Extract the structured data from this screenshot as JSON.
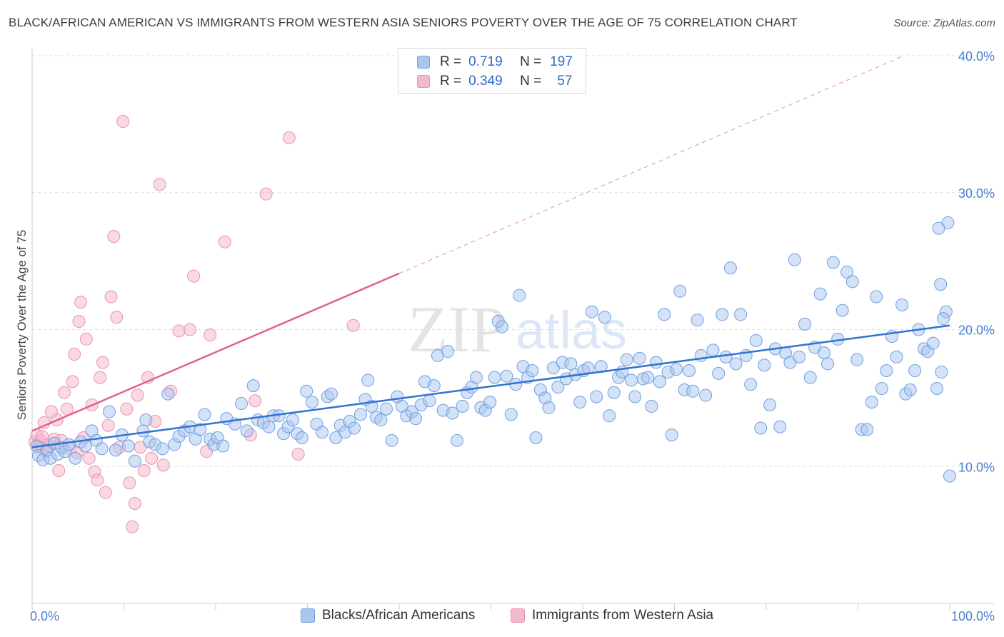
{
  "title": "BLACK/AFRICAN AMERICAN VS IMMIGRANTS FROM WESTERN ASIA SENIORS POVERTY OVER THE AGE OF 75 CORRELATION CHART",
  "source": "Source: ZipAtlas.com",
  "watermark": {
    "zip": "ZIP",
    "atlas": "atlas"
  },
  "legend": {
    "rows": [
      {
        "r_label": "R =",
        "r_value": "0.719",
        "n_label": "N =",
        "n_value": "197"
      },
      {
        "r_label": "R =",
        "r_value": "0.349",
        "n_label": "N =",
        "n_value": "57"
      }
    ]
  },
  "colors": {
    "blue_fill": "#a9c6ef",
    "blue_stroke": "#6f9fdf",
    "blue_line": "#2f72d1",
    "pink_fill": "#f5b9cc",
    "pink_stroke": "#e993ad",
    "pink_line": "#e0608f",
    "grid": "#dddddd",
    "tick_text": "#4a7fd4"
  },
  "chart_data": {
    "type": "scatter",
    "title": "BLACK/AFRICAN AMERICAN VS IMMIGRANTS FROM WESTERN ASIA SENIORS POVERTY OVER THE AGE OF 75 CORRELATION CHART",
    "xlabel": "",
    "ylabel": "Seniors Poverty Over the Age of 75",
    "xlim": [
      0,
      100
    ],
    "ylim": [
      0,
      40
    ],
    "x_tick_labels": [
      "0.0%",
      "100.0%"
    ],
    "y_ticks": [
      10,
      20,
      30,
      40
    ],
    "y_tick_labels": [
      "10.0%",
      "20.0%",
      "30.0%",
      "40.0%"
    ],
    "grid": true,
    "legend_position": "top-center",
    "series": [
      {
        "name": "Blacks/African Americans",
        "color": "#a9c6ef",
        "R": 0.719,
        "N": 197,
        "trend": {
          "x": [
            0,
            100
          ],
          "y": [
            11.4,
            20.3
          ],
          "style": "solid"
        },
        "points": [
          [
            0.5,
            11.5
          ],
          [
            0.7,
            10.8
          ],
          [
            1.2,
            10.5
          ],
          [
            1.6,
            11.2
          ],
          [
            2.0,
            10.6
          ],
          [
            2.4,
            11.7
          ],
          [
            2.8,
            10.9
          ],
          [
            3.2,
            11.4
          ],
          [
            3.6,
            11.1
          ],
          [
            4.0,
            11.6
          ],
          [
            4.7,
            10.6
          ],
          [
            5.3,
            11.8
          ],
          [
            5.8,
            11.5
          ],
          [
            6.5,
            12.6
          ],
          [
            7.0,
            11.9
          ],
          [
            7.6,
            11.3
          ],
          [
            8.4,
            14.0
          ],
          [
            9.1,
            11.2
          ],
          [
            9.8,
            12.3
          ],
          [
            10.5,
            11.5
          ],
          [
            11.2,
            10.4
          ],
          [
            12.1,
            12.6
          ],
          [
            12.4,
            13.4
          ],
          [
            12.8,
            11.8
          ],
          [
            13.4,
            11.6
          ],
          [
            14.2,
            11.3
          ],
          [
            14.8,
            15.3
          ],
          [
            15.5,
            11.6
          ],
          [
            16.0,
            12.2
          ],
          [
            16.6,
            12.6
          ],
          [
            17.2,
            12.9
          ],
          [
            17.8,
            12.0
          ],
          [
            18.3,
            12.7
          ],
          [
            18.8,
            13.8
          ],
          [
            19.4,
            12.0
          ],
          [
            19.8,
            11.6
          ],
          [
            20.2,
            12.1
          ],
          [
            20.8,
            11.5
          ],
          [
            21.2,
            13.5
          ],
          [
            22.1,
            13.1
          ],
          [
            22.8,
            14.6
          ],
          [
            23.4,
            12.6
          ],
          [
            24.1,
            15.9
          ],
          [
            24.6,
            13.4
          ],
          [
            25.2,
            13.2
          ],
          [
            25.8,
            12.9
          ],
          [
            26.3,
            13.7
          ],
          [
            26.9,
            13.7
          ],
          [
            27.4,
            12.4
          ],
          [
            27.9,
            12.9
          ],
          [
            28.4,
            13.4
          ],
          [
            28.9,
            12.4
          ],
          [
            29.4,
            12.1
          ],
          [
            29.9,
            15.5
          ],
          [
            30.5,
            14.7
          ],
          [
            31.0,
            13.1
          ],
          [
            31.6,
            12.5
          ],
          [
            32.2,
            15.1
          ],
          [
            32.6,
            15.3
          ],
          [
            33.1,
            12.1
          ],
          [
            33.6,
            13.0
          ],
          [
            34.1,
            12.5
          ],
          [
            34.6,
            13.3
          ],
          [
            35.1,
            12.8
          ],
          [
            35.8,
            13.8
          ],
          [
            36.3,
            14.9
          ],
          [
            36.6,
            16.3
          ],
          [
            37.0,
            14.4
          ],
          [
            37.5,
            13.6
          ],
          [
            38.0,
            13.4
          ],
          [
            38.6,
            14.2
          ],
          [
            39.2,
            11.9
          ],
          [
            39.8,
            15.1
          ],
          [
            40.3,
            14.4
          ],
          [
            40.8,
            13.7
          ],
          [
            41.4,
            14.0
          ],
          [
            41.8,
            13.5
          ],
          [
            42.4,
            14.5
          ],
          [
            42.8,
            16.2
          ],
          [
            43.3,
            14.8
          ],
          [
            43.8,
            15.9
          ],
          [
            44.2,
            18.1
          ],
          [
            44.8,
            14.1
          ],
          [
            45.3,
            18.4
          ],
          [
            45.8,
            13.9
          ],
          [
            46.3,
            11.9
          ],
          [
            46.9,
            14.4
          ],
          [
            47.4,
            15.4
          ],
          [
            47.9,
            15.8
          ],
          [
            48.4,
            16.5
          ],
          [
            48.9,
            14.3
          ],
          [
            49.4,
            14.1
          ],
          [
            49.9,
            14.7
          ],
          [
            50.4,
            16.5
          ],
          [
            50.8,
            20.6
          ],
          [
            51.2,
            20.2
          ],
          [
            51.7,
            16.6
          ],
          [
            52.2,
            13.8
          ],
          [
            52.7,
            16.0
          ],
          [
            53.1,
            22.5
          ],
          [
            53.5,
            17.3
          ],
          [
            54.0,
            16.5
          ],
          [
            54.5,
            17.0
          ],
          [
            54.9,
            12.1
          ],
          [
            55.4,
            15.6
          ],
          [
            55.9,
            15.0
          ],
          [
            56.3,
            14.3
          ],
          [
            56.8,
            17.2
          ],
          [
            57.3,
            15.8
          ],
          [
            57.8,
            17.6
          ],
          [
            58.2,
            16.4
          ],
          [
            58.7,
            17.5
          ],
          [
            59.2,
            16.7
          ],
          [
            59.7,
            14.7
          ],
          [
            60.1,
            17.0
          ],
          [
            60.6,
            17.2
          ],
          [
            61.0,
            21.3
          ],
          [
            61.5,
            15.1
          ],
          [
            62.0,
            17.3
          ],
          [
            62.4,
            20.9
          ],
          [
            62.9,
            13.7
          ],
          [
            63.4,
            15.4
          ],
          [
            63.9,
            16.5
          ],
          [
            64.3,
            16.9
          ],
          [
            64.8,
            17.8
          ],
          [
            65.3,
            16.3
          ],
          [
            65.7,
            15.1
          ],
          [
            66.2,
            17.9
          ],
          [
            66.6,
            16.4
          ],
          [
            67.1,
            16.5
          ],
          [
            67.5,
            14.4
          ],
          [
            68.0,
            17.6
          ],
          [
            68.4,
            16.2
          ],
          [
            68.9,
            21.1
          ],
          [
            69.3,
            16.9
          ],
          [
            69.7,
            12.3
          ],
          [
            70.2,
            17.1
          ],
          [
            70.6,
            22.8
          ],
          [
            71.1,
            15.6
          ],
          [
            71.6,
            17.0
          ],
          [
            72.0,
            15.5
          ],
          [
            72.5,
            20.7
          ],
          [
            72.9,
            18.1
          ],
          [
            73.4,
            15.2
          ],
          [
            74.2,
            18.5
          ],
          [
            74.8,
            16.8
          ],
          [
            75.2,
            21.1
          ],
          [
            75.6,
            18.0
          ],
          [
            76.1,
            24.5
          ],
          [
            76.7,
            17.5
          ],
          [
            77.2,
            21.1
          ],
          [
            77.8,
            18.1
          ],
          [
            78.3,
            16.0
          ],
          [
            78.9,
            19.2
          ],
          [
            79.4,
            12.8
          ],
          [
            79.8,
            17.4
          ],
          [
            80.4,
            14.5
          ],
          [
            81.0,
            18.6
          ],
          [
            81.5,
            12.9
          ],
          [
            82.1,
            18.3
          ],
          [
            82.6,
            17.6
          ],
          [
            83.1,
            25.1
          ],
          [
            83.6,
            18.0
          ],
          [
            84.2,
            20.4
          ],
          [
            84.8,
            16.5
          ],
          [
            85.3,
            18.7
          ],
          [
            85.9,
            22.6
          ],
          [
            86.3,
            18.3
          ],
          [
            86.7,
            17.5
          ],
          [
            87.3,
            24.9
          ],
          [
            87.8,
            19.3
          ],
          [
            88.3,
            21.4
          ],
          [
            88.8,
            24.2
          ],
          [
            89.4,
            23.5
          ],
          [
            89.9,
            17.8
          ],
          [
            90.4,
            12.7
          ],
          [
            91.0,
            12.7
          ],
          [
            91.5,
            14.7
          ],
          [
            92.0,
            22.4
          ],
          [
            92.6,
            15.7
          ],
          [
            93.1,
            17.0
          ],
          [
            93.7,
            19.5
          ],
          [
            94.2,
            18.0
          ],
          [
            94.8,
            21.8
          ],
          [
            95.2,
            15.3
          ],
          [
            95.7,
            15.6
          ],
          [
            96.2,
            17.0
          ],
          [
            96.6,
            20.0
          ],
          [
            97.2,
            18.6
          ],
          [
            97.6,
            18.4
          ],
          [
            98.2,
            19.0
          ],
          [
            98.6,
            15.7
          ],
          [
            99.1,
            16.9
          ],
          [
            99.6,
            21.3
          ],
          [
            100.0,
            9.3
          ],
          [
            99.8,
            27.8
          ],
          [
            99.3,
            20.8
          ],
          [
            99.0,
            23.3
          ],
          [
            98.8,
            27.4
          ]
        ]
      },
      {
        "name": "Immigrants from Western Asia",
        "color": "#f5b9cc",
        "R": 0.349,
        "N": 57,
        "trend_solid": {
          "x": [
            0,
            40
          ],
          "y": [
            12.6,
            24.1
          ],
          "style": "solid"
        },
        "trend_dashed": {
          "x": [
            40,
            95
          ],
          "y": [
            24.1,
            40.0
          ],
          "style": "dashed"
        },
        "points": [
          [
            0.3,
            11.8
          ],
          [
            0.5,
            12.3
          ],
          [
            0.7,
            11.4
          ],
          [
            0.9,
            11.9
          ],
          [
            1.1,
            12.2
          ],
          [
            1.3,
            13.2
          ],
          [
            1.5,
            11.1
          ],
          [
            1.7,
            11.6
          ],
          [
            1.9,
            11.5
          ],
          [
            2.1,
            14.0
          ],
          [
            2.4,
            12.0
          ],
          [
            2.7,
            13.4
          ],
          [
            2.9,
            9.7
          ],
          [
            3.2,
            11.9
          ],
          [
            3.5,
            15.4
          ],
          [
            3.8,
            14.2
          ],
          [
            4.1,
            11.3
          ],
          [
            4.4,
            16.2
          ],
          [
            4.6,
            18.2
          ],
          [
            4.9,
            11.0
          ],
          [
            5.1,
            20.6
          ],
          [
            5.3,
            22.0
          ],
          [
            5.6,
            12.1
          ],
          [
            5.9,
            19.3
          ],
          [
            6.2,
            10.6
          ],
          [
            6.5,
            14.5
          ],
          [
            6.8,
            9.6
          ],
          [
            7.1,
            9.0
          ],
          [
            7.4,
            16.5
          ],
          [
            7.7,
            17.6
          ],
          [
            8.0,
            8.1
          ],
          [
            8.3,
            13.0
          ],
          [
            8.6,
            22.4
          ],
          [
            8.9,
            26.8
          ],
          [
            9.2,
            20.9
          ],
          [
            9.5,
            11.4
          ],
          [
            9.9,
            35.2
          ],
          [
            10.3,
            14.2
          ],
          [
            10.6,
            8.8
          ],
          [
            10.9,
            5.6
          ],
          [
            11.2,
            7.3
          ],
          [
            11.5,
            15.2
          ],
          [
            11.8,
            11.4
          ],
          [
            12.2,
            9.7
          ],
          [
            12.6,
            16.5
          ],
          [
            13.0,
            10.6
          ],
          [
            13.4,
            13.3
          ],
          [
            13.9,
            30.6
          ],
          [
            14.3,
            10.1
          ],
          [
            15.1,
            15.5
          ],
          [
            16.0,
            19.9
          ],
          [
            17.2,
            20.0
          ],
          [
            17.6,
            23.9
          ],
          [
            19.0,
            11.1
          ],
          [
            19.4,
            19.6
          ],
          [
            21.0,
            26.4
          ],
          [
            23.8,
            12.3
          ],
          [
            24.3,
            14.8
          ],
          [
            25.5,
            29.9
          ],
          [
            28.0,
            34.0
          ],
          [
            29.0,
            10.9
          ],
          [
            35.0,
            20.3
          ]
        ]
      }
    ]
  },
  "bottom_legend": {
    "items": [
      {
        "label": "Blacks/African Americans"
      },
      {
        "label": "Immigrants from Western Asia"
      }
    ]
  }
}
